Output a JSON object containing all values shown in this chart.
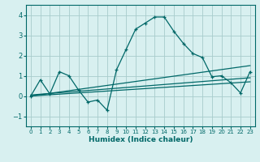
{
  "xlabel": "Humidex (Indice chaleur)",
  "background_color": "#d8f0f0",
  "grid_color": "#a8cccc",
  "line_color": "#006868",
  "xlim": [
    -0.5,
    23.5
  ],
  "ylim": [
    -1.5,
    4.5
  ],
  "xticks": [
    0,
    1,
    2,
    3,
    4,
    5,
    6,
    7,
    8,
    9,
    10,
    11,
    12,
    13,
    14,
    15,
    16,
    17,
    18,
    19,
    20,
    21,
    22,
    23
  ],
  "yticks": [
    -1,
    0,
    1,
    2,
    3,
    4
  ],
  "series1_x": [
    0,
    1,
    2,
    3,
    4,
    5,
    6,
    7,
    8,
    9,
    10,
    11,
    12,
    13,
    14,
    15,
    16,
    17,
    18,
    19,
    20,
    21,
    22,
    23
  ],
  "series1_y": [
    0.0,
    0.8,
    0.1,
    1.2,
    1.0,
    0.3,
    -0.3,
    -0.2,
    -0.7,
    1.3,
    2.3,
    3.3,
    3.6,
    3.9,
    3.9,
    3.2,
    2.6,
    2.1,
    1.9,
    0.95,
    1.0,
    0.65,
    0.15,
    1.2
  ],
  "series2_x": [
    0,
    23
  ],
  "series2_y": [
    0.05,
    0.9
  ],
  "series3_x": [
    0,
    23
  ],
  "series3_y": [
    0.0,
    0.7
  ],
  "series4_x": [
    0,
    23
  ],
  "series4_y": [
    0.0,
    1.5
  ]
}
